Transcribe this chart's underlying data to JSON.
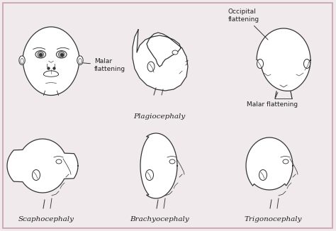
{
  "background_color": "#f0eaec",
  "border_color": "#c9a0aa",
  "line_color": "#333333",
  "text_color": "#222222",
  "labels": {
    "top_mid_label": "Plagiocephaly",
    "top_right_label1": "Occipital\nflattening",
    "top_right_label2": "Malar flattening",
    "top_left_annot": "Malar\nflattening",
    "bot_left_label": "Scaphocephaly",
    "bot_mid_label": "Brachyocephaly",
    "bot_right_label": "Trigonocephaly"
  },
  "font_size_labels": 7.5,
  "font_size_annot": 6.5,
  "lw": 0.9
}
